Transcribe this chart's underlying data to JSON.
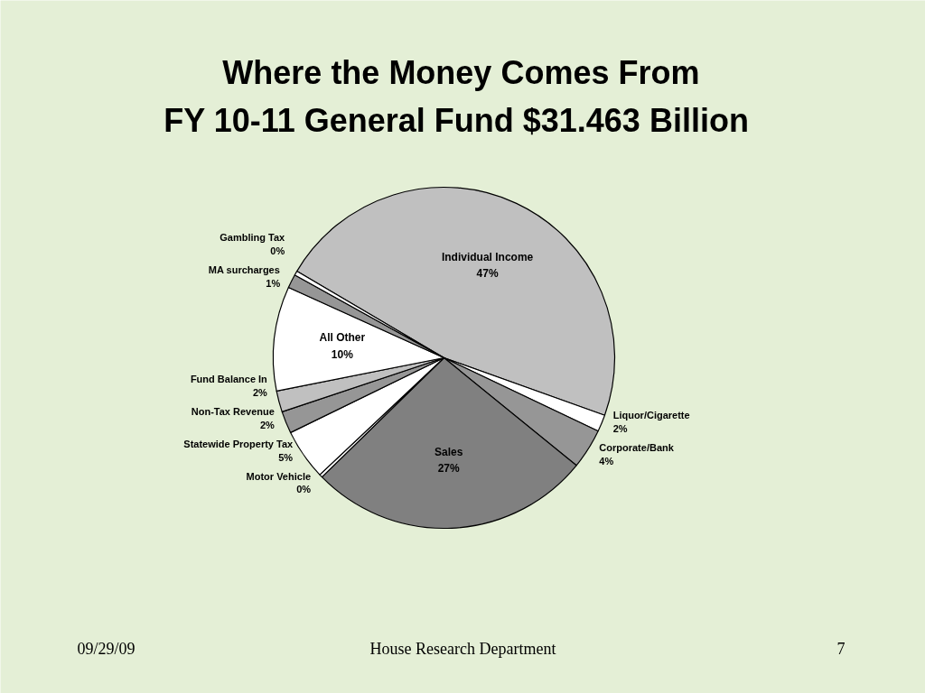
{
  "chart_data": {
    "type": "pie",
    "title": "Where the Money Comes From",
    "subtitle": "FY 10-11 General Fund  $31.463 Billion",
    "categories": [
      "Individual Income",
      "Liquor/Cigarette",
      "Corporate/Bank",
      "Sales",
      "Motor Vehicle",
      "Statewide Property Tax",
      "Non-Tax Revenue",
      "Fund Balance In",
      "All Other",
      "MA surcharges",
      "Gambling Tax"
    ],
    "values": [
      47,
      1.6,
      3.8,
      26.8,
      0.3,
      4.8,
      2.1,
      2.0,
      9.9,
      1.3,
      0.4
    ],
    "value_labels": [
      "47%",
      "2%",
      "4%",
      "27%",
      "0%",
      "5%",
      "2%",
      "2%",
      "10%",
      "1%",
      "0%"
    ],
    "colors": [
      "#c0c0c0",
      "#ffffff",
      "#969696",
      "#808080",
      "#ffffff",
      "#ffffff",
      "#969696",
      "#c0c0c0",
      "#ffffff",
      "#969696",
      "#ffffff"
    ],
    "annotations": [
      "09/29/09",
      "House Research Department",
      "7"
    ],
    "legend": false
  }
}
